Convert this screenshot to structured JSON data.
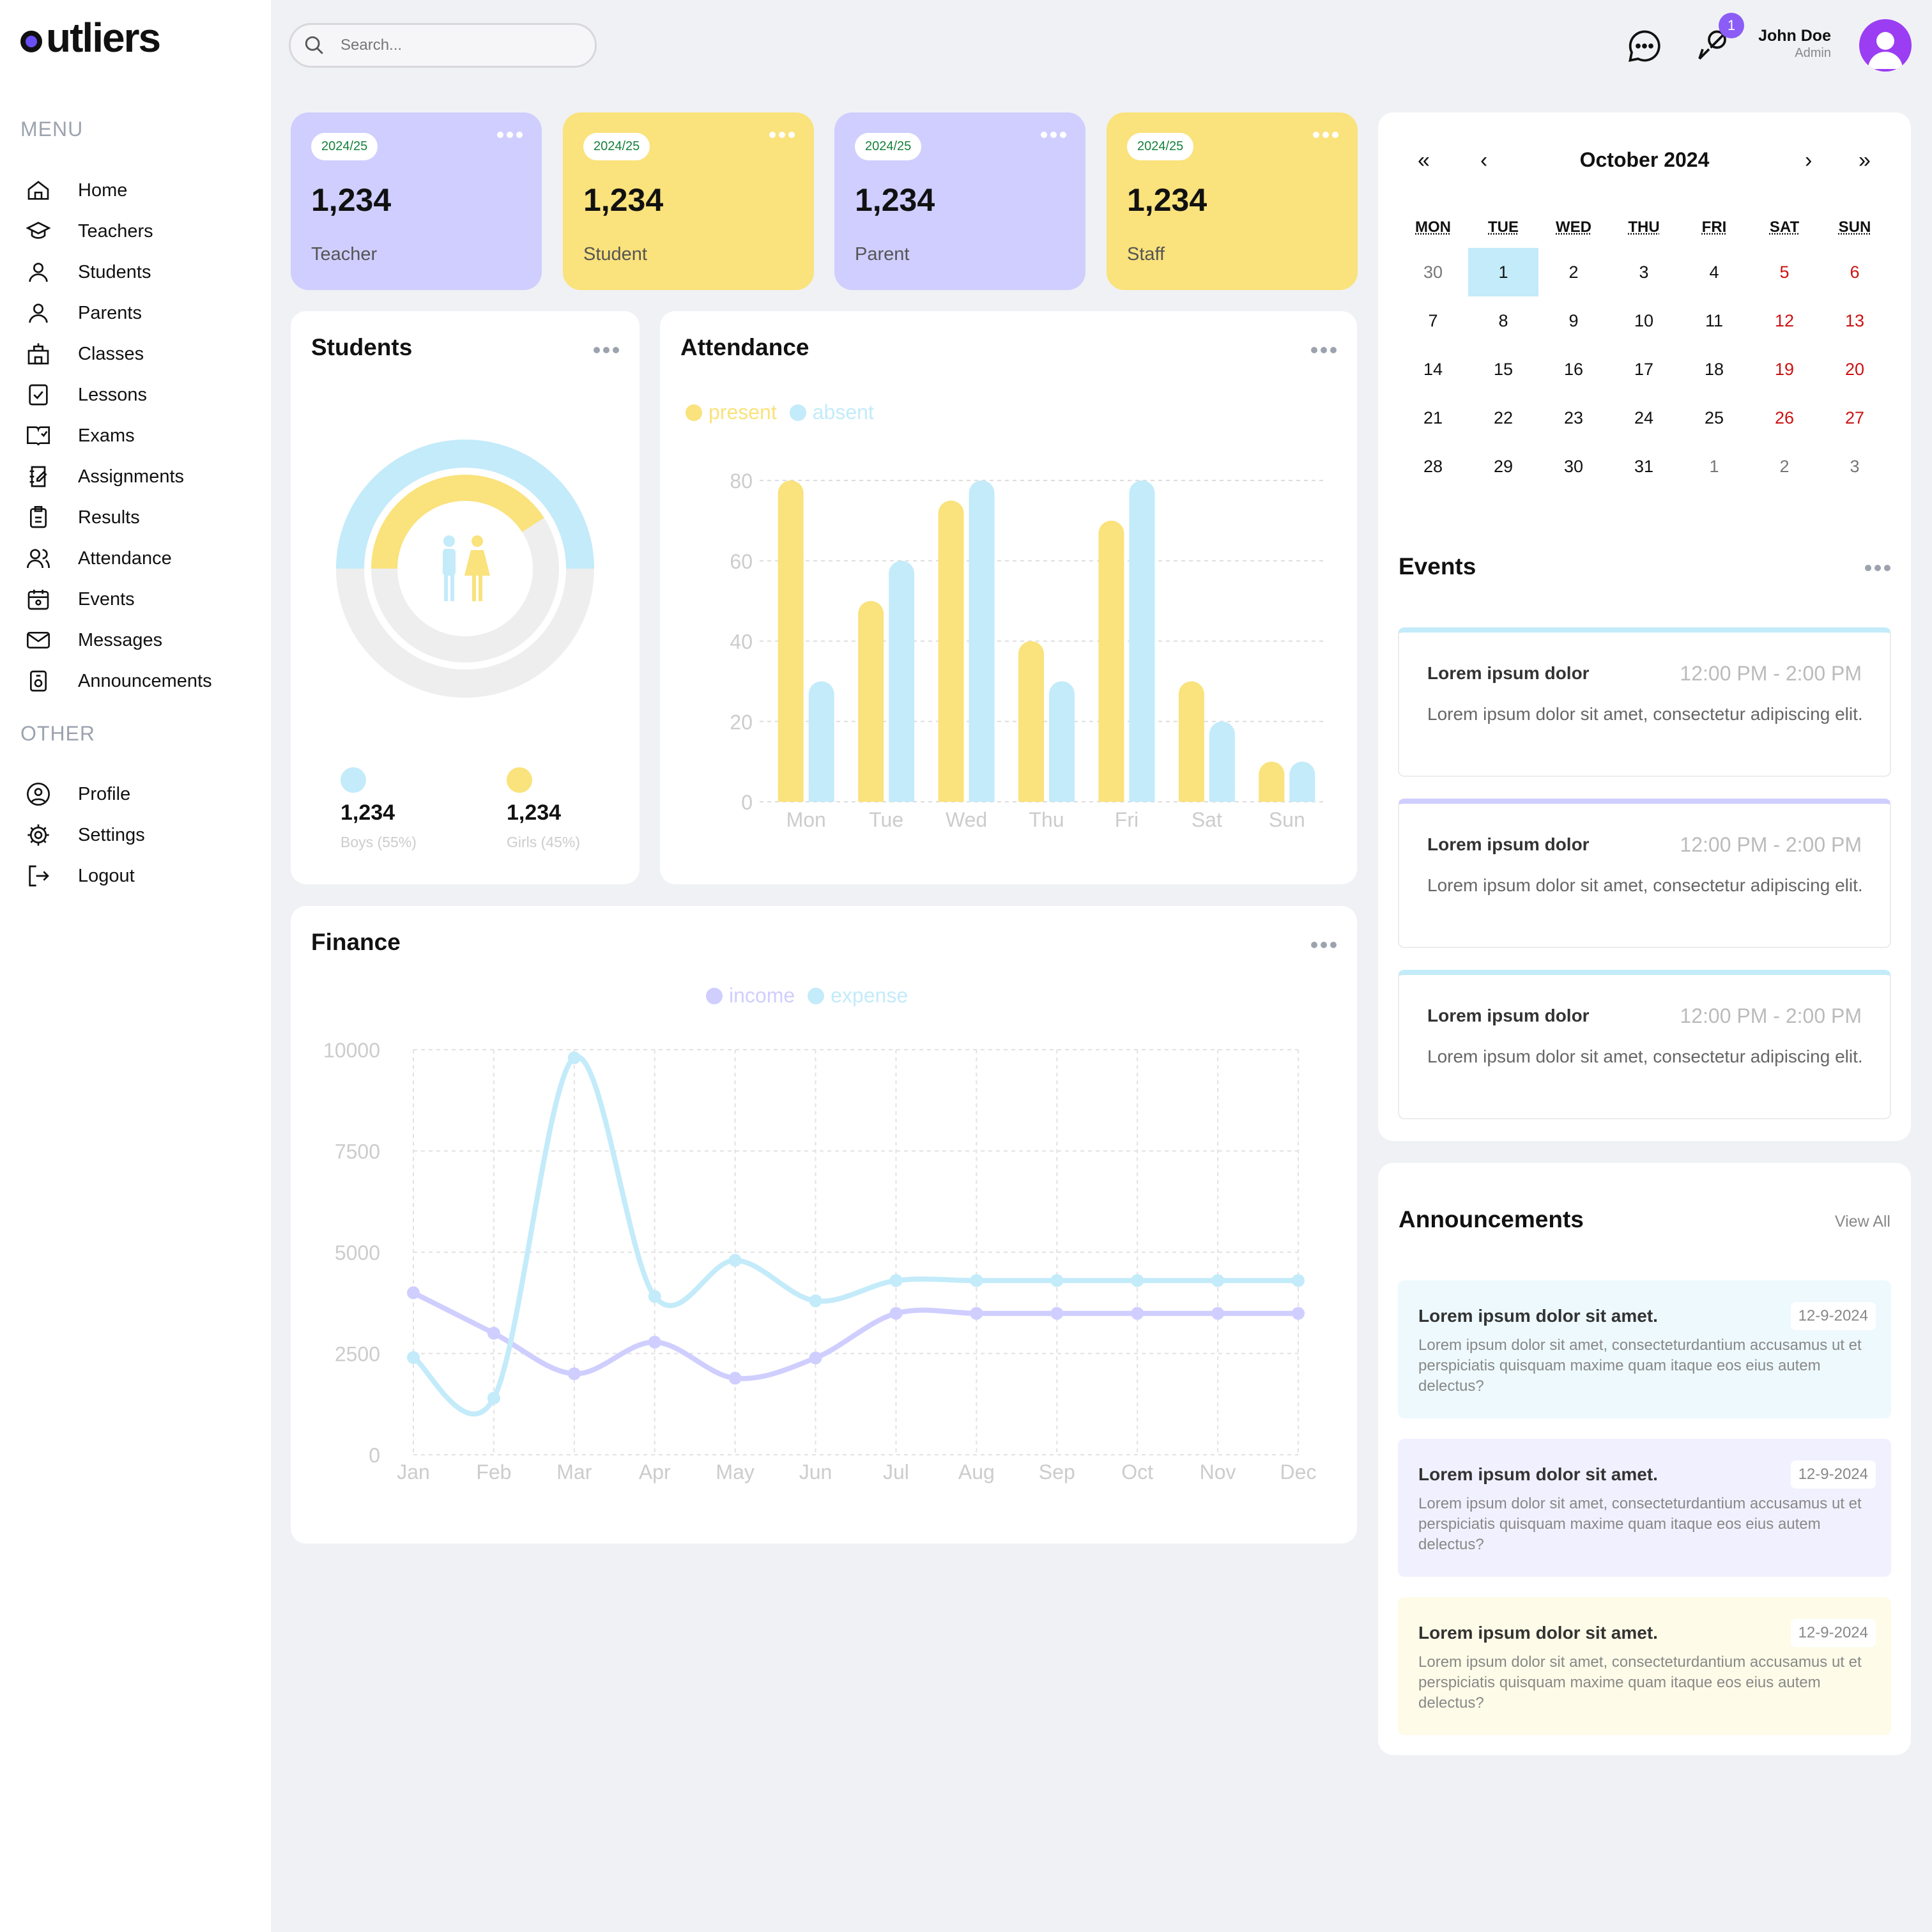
{
  "brand": {
    "name": "utliers"
  },
  "menu": {
    "title": "MENU",
    "items": [
      "Home",
      "Teachers",
      "Students",
      "Parents",
      "Classes",
      "Lessons",
      "Exams",
      "Assignments",
      "Results",
      "Attendance",
      "Events",
      "Messages",
      "Announcements"
    ],
    "other_title": "OTHER",
    "other_items": [
      "Profile",
      "Settings",
      "Logout"
    ]
  },
  "search": {
    "placeholder": "Search..."
  },
  "header": {
    "notification_count": "1",
    "user_name": "John Doe",
    "user_role": "Admin"
  },
  "stats": [
    {
      "year": "2024/25",
      "value": "1,234",
      "label": "Teacher",
      "color": "#cfceff"
    },
    {
      "year": "2024/25",
      "value": "1,234",
      "label": "Student",
      "color": "#fae27c"
    },
    {
      "year": "2024/25",
      "value": "1,234",
      "label": "Parent",
      "color": "#cfceff"
    },
    {
      "year": "2024/25",
      "value": "1,234",
      "label": "Staff",
      "color": "#fae27c"
    }
  ],
  "students_card": {
    "title": "Students",
    "boys": {
      "value": "1,234",
      "label": "Boys (55%)",
      "color": "#c3ebfa"
    },
    "girls": {
      "value": "1,234",
      "label": "Girls (45%)",
      "color": "#fae27c"
    }
  },
  "attendance_card": {
    "title": "Attendance",
    "legend_present": "present",
    "legend_absent": "absent"
  },
  "finance_card": {
    "title": "Finance",
    "legend_income": "income",
    "legend_expense": "expense"
  },
  "calendar": {
    "month_label": "October 2024",
    "nav": {
      "prev_year": "«",
      "prev_month": "‹",
      "next_month": "›",
      "next_year": "»"
    },
    "weekdays": [
      "MON",
      "TUE",
      "WED",
      "THU",
      "FRI",
      "SAT",
      "SUN"
    ],
    "weeks": [
      [
        "30",
        "1",
        "2",
        "3",
        "4",
        "5",
        "6"
      ],
      [
        "7",
        "8",
        "9",
        "10",
        "11",
        "12",
        "13"
      ],
      [
        "14",
        "15",
        "16",
        "17",
        "18",
        "19",
        "20"
      ],
      [
        "21",
        "22",
        "23",
        "24",
        "25",
        "26",
        "27"
      ],
      [
        "28",
        "29",
        "30",
        "31",
        "1",
        "2",
        "3"
      ]
    ],
    "selected": "1"
  },
  "events": {
    "title": "Events",
    "items": [
      {
        "title": "Lorem ipsum dolor",
        "time": "12:00 PM - 2:00 PM",
        "desc": "Lorem ipsum dolor sit amet, consectetur adipiscing elit.",
        "color": "#c3ebfa"
      },
      {
        "title": "Lorem ipsum dolor",
        "time": "12:00 PM - 2:00 PM",
        "desc": "Lorem ipsum dolor sit amet, consectetur adipiscing elit.",
        "color": "#cfceff"
      },
      {
        "title": "Lorem ipsum dolor",
        "time": "12:00 PM - 2:00 PM",
        "desc": "Lorem ipsum dolor sit amet, consectetur adipiscing elit.",
        "color": "#c3ebfa"
      }
    ]
  },
  "announcements": {
    "title": "Announcements",
    "view_all": "View All",
    "items": [
      {
        "title": "Lorem ipsum dolor sit amet.",
        "date": "12-9-2024",
        "desc": "Lorem ipsum dolor sit amet, consecteturdantium accusamus ut et perspiciatis quisquam maxime quam itaque eos eius autem delectus?",
        "color": "#edf9fd"
      },
      {
        "title": "Lorem ipsum dolor sit amet.",
        "date": "12-9-2024",
        "desc": "Lorem ipsum dolor sit amet, consecteturdantium accusamus ut et perspiciatis quisquam maxime quam itaque eos eius autem delectus?",
        "color": "#f1f0ff"
      },
      {
        "title": "Lorem ipsum dolor sit amet.",
        "date": "12-9-2024",
        "desc": "Lorem ipsum dolor sit amet, consecteturdantium accusamus ut et perspiciatis quisquam maxime quam itaque eos eius autem delectus?",
        "color": "#fefce8"
      }
    ]
  },
  "chart_data": [
    {
      "type": "pie",
      "categories": [
        "Boys",
        "Girls"
      ],
      "values": [
        55,
        45
      ],
      "colors": [
        "#c3ebfa",
        "#fae27c"
      ]
    },
    {
      "type": "bar",
      "categories": [
        "Mon",
        "Tue",
        "Wed",
        "Thu",
        "Fri",
        "Sat",
        "Sun"
      ],
      "series": [
        {
          "name": "present",
          "values": [
            80,
            50,
            75,
            40,
            70,
            30,
            10
          ],
          "color": "#fae27c"
        },
        {
          "name": "absent",
          "values": [
            30,
            60,
            80,
            30,
            80,
            20,
            10
          ],
          "color": "#c3ebfa"
        }
      ],
      "yticks": [
        0,
        20,
        40,
        60,
        80
      ],
      "ylim": [
        0,
        80
      ],
      "grid": true,
      "legend": "top-left"
    },
    {
      "type": "line",
      "categories": [
        "Jan",
        "Feb",
        "Mar",
        "Apr",
        "May",
        "Jun",
        "Jul",
        "Aug",
        "Sep",
        "Oct",
        "Nov",
        "Dec"
      ],
      "series": [
        {
          "name": "income",
          "values": [
            4000,
            3000,
            2000,
            2780,
            1890,
            2390,
            3490,
            3490,
            3490,
            3490,
            3490,
            3490
          ],
          "color": "#cfceff"
        },
        {
          "name": "expense",
          "values": [
            2400,
            1398,
            9800,
            3908,
            4800,
            3800,
            4300,
            4300,
            4300,
            4300,
            4300,
            4300
          ],
          "color": "#c3ebfa"
        }
      ],
      "yticks": [
        0,
        2500,
        5000,
        7500,
        10000
      ],
      "ylim": [
        0,
        10000
      ],
      "grid": true,
      "legend": "top-center"
    }
  ]
}
